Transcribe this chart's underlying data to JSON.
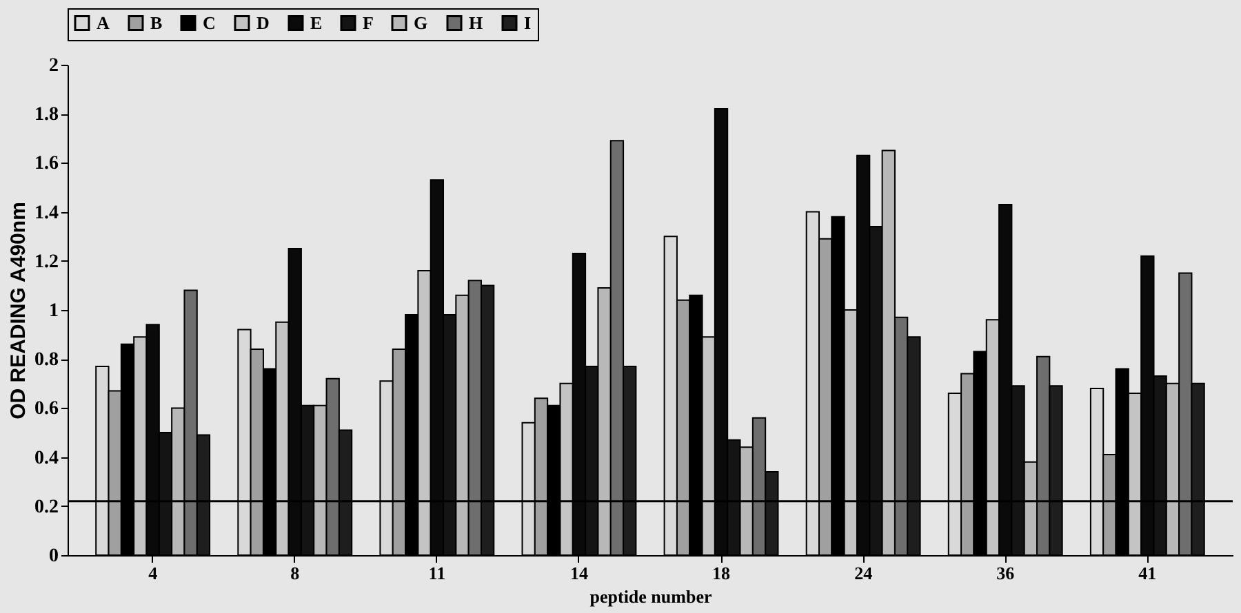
{
  "chart_data": {
    "type": "bar",
    "xlabel": "peptide number",
    "ylabel": "OD READING A490nm",
    "categories": [
      "4",
      "8",
      "11",
      "14",
      "18",
      "24",
      "36",
      "41"
    ],
    "series": [
      {
        "name": "A",
        "color": "#d9d9d9",
        "values": [
          0.77,
          0.92,
          0.71,
          0.54,
          1.3,
          1.4,
          0.66,
          0.68
        ]
      },
      {
        "name": "B",
        "color": "#a0a0a0",
        "values": [
          0.67,
          0.84,
          0.84,
          0.64,
          1.04,
          1.29,
          0.74,
          0.41
        ]
      },
      {
        "name": "C",
        "color": "#000000",
        "values": [
          0.86,
          0.76,
          0.98,
          0.61,
          1.06,
          1.38,
          0.83,
          0.76
        ]
      },
      {
        "name": "D",
        "color": "#c4c4c4",
        "values": [
          0.89,
          0.95,
          1.16,
          0.7,
          0.89,
          1.0,
          0.96,
          0.66
        ]
      },
      {
        "name": "E",
        "color": "#0a0a0a",
        "values": [
          0.94,
          1.25,
          1.53,
          1.23,
          1.82,
          1.63,
          1.43,
          1.22
        ]
      },
      {
        "name": "F",
        "color": "#141414",
        "values": [
          0.5,
          0.61,
          0.98,
          0.77,
          0.47,
          1.34,
          0.69,
          0.73
        ]
      },
      {
        "name": "G",
        "color": "#b8b8b8",
        "values": [
          0.6,
          0.61,
          1.06,
          1.09,
          0.44,
          1.65,
          0.38,
          0.7
        ]
      },
      {
        "name": "H",
        "color": "#6e6e6e",
        "values": [
          1.08,
          0.72,
          1.12,
          1.69,
          0.56,
          0.97,
          0.81,
          1.15
        ]
      },
      {
        "name": "I",
        "color": "#1e1e1e",
        "values": [
          0.49,
          0.51,
          1.1,
          0.77,
          0.34,
          0.89,
          0.69,
          0.7
        ]
      }
    ],
    "ylim": [
      0,
      2
    ],
    "yticks": [
      0,
      0.2,
      0.4,
      0.6,
      0.8,
      1,
      1.2,
      1.4,
      1.6,
      1.8,
      2
    ],
    "ref_lines": [
      {
        "axis": "y",
        "value": 0.22,
        "color": "#000000"
      }
    ],
    "grid": false,
    "legend": "top"
  }
}
